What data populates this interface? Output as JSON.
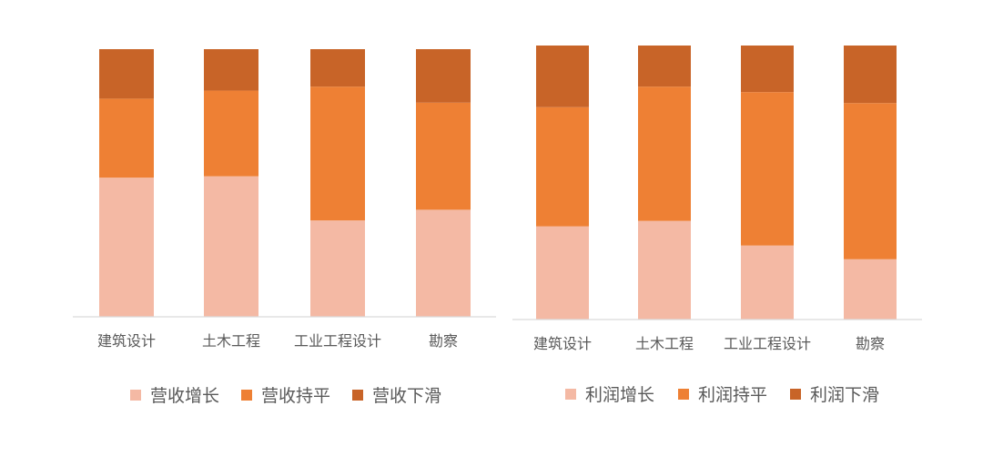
{
  "colors": {
    "growth": "#f4b9a4",
    "flat": "#ee8034",
    "decline": "#c86428",
    "axis": "#d9d9d9"
  },
  "chart_data": [
    {
      "type": "bar",
      "stacked": true,
      "normalized": true,
      "categories": [
        "建筑设计",
        "土木工程",
        "工业工程设计",
        "勘察"
      ],
      "series": [
        {
          "name": "营收增长",
          "values": [
            52,
            52.5,
            36,
            40
          ]
        },
        {
          "name": "营收持平",
          "values": [
            29.5,
            32,
            50,
            40
          ]
        },
        {
          "name": "营收下滑",
          "values": [
            18.5,
            15.5,
            14,
            20
          ]
        }
      ],
      "ylim": [
        0,
        100
      ],
      "grid": false,
      "legend": "bottom"
    },
    {
      "type": "bar",
      "stacked": true,
      "normalized": true,
      "categories": [
        "建筑设计",
        "土木工程",
        "工业工程设计",
        "勘察"
      ],
      "series": [
        {
          "name": "利润增长",
          "values": [
            34,
            36,
            27,
            22
          ]
        },
        {
          "name": "利润持平",
          "values": [
            43.5,
            49,
            56,
            57
          ]
        },
        {
          "name": "利润下滑",
          "values": [
            22.5,
            15,
            17,
            21
          ]
        }
      ],
      "ylim": [
        0,
        100
      ],
      "grid": false,
      "legend": "bottom"
    }
  ]
}
